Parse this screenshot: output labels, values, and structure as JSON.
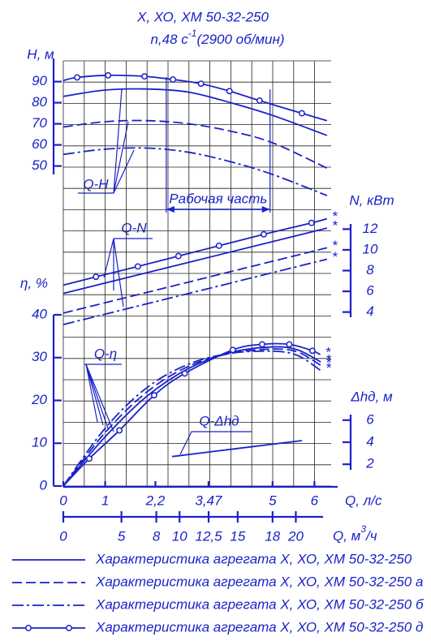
{
  "chart_data": {
    "type": "line",
    "title": "Х, ХО, ХМ 50-32-250",
    "subtitle": "n,48 с",
    "subtitle_sup": "-1",
    "subtitle_rest": "(2900 об/мин)",
    "grid": true,
    "color": "#1a22c8",
    "x": {
      "label": "Q, л/с",
      "xlim": [
        0,
        6.4
      ],
      "xticks": [
        0,
        1,
        {
          "value": 2.2,
          "label": "2,2"
        },
        {
          "value": 3.47,
          "label": "3,47"
        },
        5,
        6
      ]
    },
    "x2": {
      "label": "Q, м",
      "label_sup": "3",
      "label_rest": "/ч",
      "xlim": [
        0,
        23.04
      ],
      "xticks": [
        0,
        5,
        8,
        10,
        {
          "value": 12.5,
          "label": "12,5"
        },
        15,
        18,
        20
      ]
    },
    "axes": {
      "H": {
        "label": "H, м",
        "ylim": [
          46,
          101
        ],
        "yticks": [
          50,
          60,
          70,
          80,
          90
        ]
      },
      "N": {
        "label": "N, кВт",
        "ylim": [
          3.5,
          12.5
        ],
        "yticks": [
          4,
          6,
          8,
          10,
          12
        ]
      },
      "eta": {
        "label": "η, %",
        "ylim": [
          0,
          40
        ],
        "yticks": [
          0,
          10,
          20,
          30,
          40
        ]
      },
      "dh": {
        "label": "Δhд, м",
        "ylim": [
          1.5,
          6.5
        ],
        "yticks": [
          2,
          4,
          6
        ]
      }
    },
    "annotations": {
      "qh": "Q-H",
      "qn": "Q-N",
      "qeta": "Q-η",
      "qdh": "Q-Δhд",
      "work": "Рабочая часть"
    },
    "working_range": [
      2.46,
      4.94
    ],
    "series": [
      {
        "name": "Характеристика агрегата Х, ХО, ХМ 50-32-250",
        "color": "#1a22c8",
        "dash": "solid",
        "marker": null,
        "H": {
          "x": [
            0,
            1,
            2,
            3,
            4,
            5,
            6.3
          ],
          "values": [
            83,
            86,
            86.5,
            85,
            80,
            74,
            64.5
          ]
        },
        "N": {
          "x": [
            0,
            6.3
          ],
          "values": [
            5.8,
            12.1
          ],
          "end_label": "*"
        },
        "eta": {
          "x": [
            0,
            1,
            2,
            3,
            4,
            5,
            5.6,
            6.15
          ],
          "values": [
            0,
            11.5,
            21,
            27.5,
            31.2,
            32.5,
            31.8,
            29
          ],
          "end_label": "*"
        }
      },
      {
        "name": "Характеристика агрегата Х, ХО, ХМ 50-32-250 а",
        "color": "#1a22c8",
        "dash": "dashed",
        "marker": null,
        "H": {
          "x": [
            0,
            1,
            2,
            3,
            4,
            5,
            6.3
          ],
          "values": [
            68.5,
            71,
            71.5,
            70,
            66.5,
            61,
            49
          ]
        },
        "N": {
          "x": [
            0,
            6.3
          ],
          "values": [
            3.9,
            10.2
          ],
          "end_label": "*"
        },
        "eta": {
          "x": [
            0,
            1,
            2,
            3,
            4,
            5,
            5.6,
            6.15
          ],
          "values": [
            0,
            12.5,
            22,
            28,
            31,
            32,
            31.3,
            28.2
          ],
          "end_label": "*"
        }
      },
      {
        "name": "Характеристика агрегата Х, ХО, ХМ 50-32-250 б",
        "color": "#1a22c8",
        "dash": "dashdot",
        "marker": null,
        "H": {
          "x": [
            0,
            1,
            2,
            3,
            4,
            5,
            6.3
          ],
          "values": [
            55.5,
            58,
            58.5,
            56.5,
            52,
            46,
            36
          ]
        },
        "N": {
          "x": [
            0,
            6.3
          ],
          "values": [
            2.8,
            9.1
          ],
          "end_label": "*"
        },
        "eta": {
          "x": [
            0,
            1,
            2,
            3,
            4,
            5,
            5.6,
            6.15
          ],
          "values": [
            0,
            13.5,
            23,
            28.5,
            31,
            31.5,
            30.5,
            27
          ],
          "end_label": "*"
        }
      },
      {
        "name": "Характеристика агрегата Х, ХО, ХМ 50-32-250 д",
        "color": "#1a22c8",
        "dash": "solid",
        "marker": "circle",
        "H": {
          "x": [
            0,
            0.33,
            1.07,
            1.94,
            2.62,
            3.29,
            3.97,
            4.69,
            5.7,
            6.3
          ],
          "values": [
            90.5,
            92,
            93,
            92.5,
            91,
            89,
            85.5,
            81,
            75,
            71.5
          ]
        },
        "N": {
          "x": [
            0,
            0.78,
            1.78,
            2.75,
            3.72,
            4.79,
            5.93,
            6.3
          ],
          "values": [
            6.6,
            7.4,
            8.4,
            9.4,
            10.4,
            11.5,
            12.6,
            13
          ],
          "end_label": "*"
        },
        "eta": {
          "x": [
            0,
            0.62,
            1.34,
            2.17,
            2.9,
            4.05,
            4.75,
            5.4,
            5.95,
            6.14
          ],
          "values": [
            0,
            6.4,
            13,
            21.2,
            26.3,
            31.8,
            33.1,
            33.1,
            31.6,
            30.7
          ],
          "end_label": "*"
        }
      }
    ],
    "npsh": {
      "x": [
        2.6,
        5.7
      ],
      "values": [
        2.7,
        4.15
      ]
    }
  }
}
